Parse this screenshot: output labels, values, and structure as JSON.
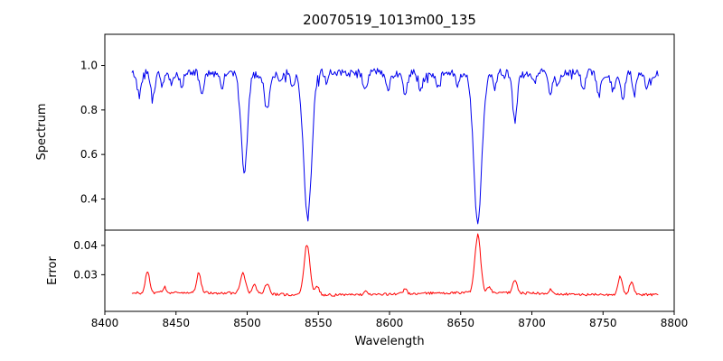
{
  "title": "20070519_1013m00_135",
  "x_axis": {
    "label": "Wavelength",
    "lim": [
      8400,
      8800
    ],
    "tick_values": [
      8400,
      8450,
      8500,
      8550,
      8600,
      8650,
      8700,
      8750,
      8800
    ],
    "tick_labels": [
      "8400",
      "8450",
      "8500",
      "8550",
      "8600",
      "8650",
      "8700",
      "8750",
      "8800"
    ]
  },
  "chart_data": [
    {
      "type": "line",
      "name": "spectrum",
      "title": "20070519_1013m00_135",
      "ylabel": "Spectrum",
      "color": "#0000ee",
      "xlim": [
        8400,
        8800
      ],
      "ylim": [
        0.26,
        1.14
      ],
      "ytick_values": [
        0.4,
        0.6,
        0.8,
        1.0
      ],
      "ytick_labels": [
        "0.4",
        "0.6",
        "0.8",
        "1.0"
      ],
      "x_start": 8419,
      "x_end": 8789,
      "x_step": 0.75,
      "continuum": 0.965,
      "noise_amp": 0.016,
      "absorption_lines": [
        {
          "center": 8498,
          "depth": 0.455,
          "width": 2.2
        },
        {
          "center": 8542.5,
          "depth": 0.64,
          "width": 2.8
        },
        {
          "center": 8662,
          "depth": 0.665,
          "width": 2.8
        },
        {
          "center": 8424,
          "depth": 0.09,
          "width": 1.5
        },
        {
          "center": 8434,
          "depth": 0.12,
          "width": 1.5
        },
        {
          "center": 8440,
          "depth": 0.06,
          "width": 1.2
        },
        {
          "center": 8447,
          "depth": 0.05,
          "width": 1.2
        },
        {
          "center": 8454,
          "depth": 0.05,
          "width": 1.2
        },
        {
          "center": 8468,
          "depth": 0.09,
          "width": 1.5
        },
        {
          "center": 8482,
          "depth": 0.05,
          "width": 1.2
        },
        {
          "center": 8514,
          "depth": 0.16,
          "width": 1.8
        },
        {
          "center": 8523,
          "depth": 0.05,
          "width": 1.2
        },
        {
          "center": 8532,
          "depth": 0.06,
          "width": 1.3
        },
        {
          "center": 8556,
          "depth": 0.05,
          "width": 1.2
        },
        {
          "center": 8583,
          "depth": 0.09,
          "width": 1.5
        },
        {
          "center": 8599,
          "depth": 0.07,
          "width": 1.4
        },
        {
          "center": 8611,
          "depth": 0.1,
          "width": 1.5
        },
        {
          "center": 8622,
          "depth": 0.08,
          "width": 1.4
        },
        {
          "center": 8634,
          "depth": 0.05,
          "width": 1.2
        },
        {
          "center": 8648,
          "depth": 0.06,
          "width": 1.3
        },
        {
          "center": 8674,
          "depth": 0.07,
          "width": 1.3
        },
        {
          "center": 8688,
          "depth": 0.21,
          "width": 1.6
        },
        {
          "center": 8702,
          "depth": 0.05,
          "width": 1.2
        },
        {
          "center": 8713,
          "depth": 0.09,
          "width": 1.4
        },
        {
          "center": 8718,
          "depth": 0.06,
          "width": 1.2
        },
        {
          "center": 8736,
          "depth": 0.08,
          "width": 1.4
        },
        {
          "center": 8747,
          "depth": 0.09,
          "width": 1.4
        },
        {
          "center": 8757,
          "depth": 0.07,
          "width": 1.3
        },
        {
          "center": 8764,
          "depth": 0.11,
          "width": 1.5
        },
        {
          "center": 8772,
          "depth": 0.08,
          "width": 1.3
        },
        {
          "center": 8781,
          "depth": 0.06,
          "width": 1.2
        }
      ]
    },
    {
      "type": "line",
      "name": "error",
      "ylabel": "Error",
      "color": "#ff0000",
      "xlim": [
        8400,
        8800
      ],
      "ylim": [
        0.0175,
        0.0452
      ],
      "ytick_values": [
        0.03,
        0.04
      ],
      "ytick_labels": [
        "0.03",
        "0.04"
      ],
      "x_start": 8419,
      "x_end": 8789,
      "x_step": 0.75,
      "baseline": 0.0235,
      "noise_amp": 0.00045,
      "peaks": [
        {
          "center": 8430,
          "height": 0.0075,
          "width": 1.5
        },
        {
          "center": 8442,
          "height": 0.002,
          "width": 1.2
        },
        {
          "center": 8466,
          "height": 0.0068,
          "width": 1.5
        },
        {
          "center": 8497,
          "height": 0.0068,
          "width": 1.8
        },
        {
          "center": 8505,
          "height": 0.003,
          "width": 1.5
        },
        {
          "center": 8514,
          "height": 0.0035,
          "width": 1.5
        },
        {
          "center": 8542,
          "height": 0.0172,
          "width": 2.0
        },
        {
          "center": 8549,
          "height": 0.003,
          "width": 1.5
        },
        {
          "center": 8583,
          "height": 0.0015,
          "width": 1.2
        },
        {
          "center": 8611,
          "height": 0.0015,
          "width": 1.2
        },
        {
          "center": 8662,
          "height": 0.0196,
          "width": 2.0
        },
        {
          "center": 8670,
          "height": 0.002,
          "width": 1.2
        },
        {
          "center": 8688,
          "height": 0.0045,
          "width": 1.5
        },
        {
          "center": 8713,
          "height": 0.0015,
          "width": 1.2
        },
        {
          "center": 8762,
          "height": 0.0062,
          "width": 1.5
        },
        {
          "center": 8770,
          "height": 0.0045,
          "width": 1.5
        }
      ]
    }
  ]
}
